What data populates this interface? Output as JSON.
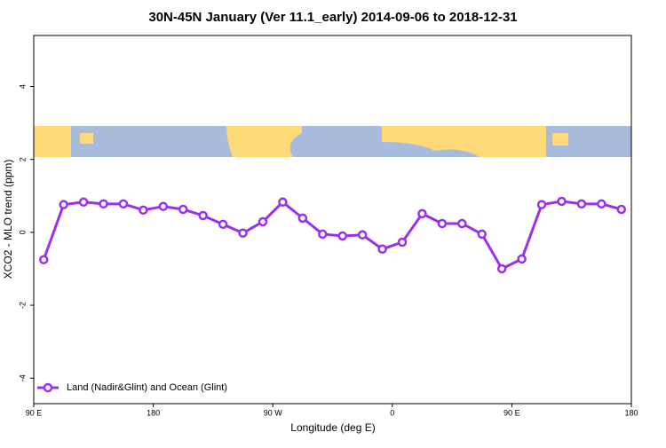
{
  "chart_data": {
    "type": "line",
    "title": "30N-45N January (Ver 11.1_early)   2014-09-06 to 2018-12-31",
    "x_label": "Longitude (deg E)",
    "y_label": "XCO2 - MLO trend (ppm)",
    "xlim": [
      90,
      540
    ],
    "ylim": [
      -4.7,
      5.4
    ],
    "xticks": [
      {
        "value": 90,
        "label": "90 E"
      },
      180,
      {
        "value": 270,
        "label": "90 W"
      },
      {
        "value": 360,
        "label": "0"
      },
      {
        "value": 450,
        "label": "90 E"
      },
      {
        "value": 540,
        "label": "180"
      }
    ],
    "yticks": [
      -4,
      -2,
      0,
      2,
      4
    ],
    "legend": "bottom-left",
    "series": [
      {
        "name": "Land (Nadir&Glint) and Ocean (Glint)",
        "color": "#9b30e8",
        "x": [
          97.5,
          112.5,
          127.5,
          142.5,
          157.5,
          172.5,
          187.5,
          202.5,
          217.5,
          232.5,
          247.5,
          262.5,
          277.5,
          292.5,
          307.5,
          322.5,
          337.5,
          352.5,
          367.5,
          382.5,
          397.5,
          412.5,
          427.5,
          442.5,
          457.5,
          472.5,
          487.5,
          502.5,
          517.5,
          532.5
        ],
        "values": [
          -0.75,
          0.76,
          0.83,
          0.78,
          0.78,
          0.61,
          0.71,
          0.63,
          0.46,
          0.22,
          -0.02,
          0.29,
          0.83,
          0.39,
          -0.05,
          -0.1,
          -0.07,
          -0.46,
          -0.27,
          0.51,
          0.24,
          0.24,
          -0.05,
          -1.0,
          -0.73,
          0.76,
          0.85,
          0.78,
          0.78,
          0.63
        ]
      }
    ]
  }
}
